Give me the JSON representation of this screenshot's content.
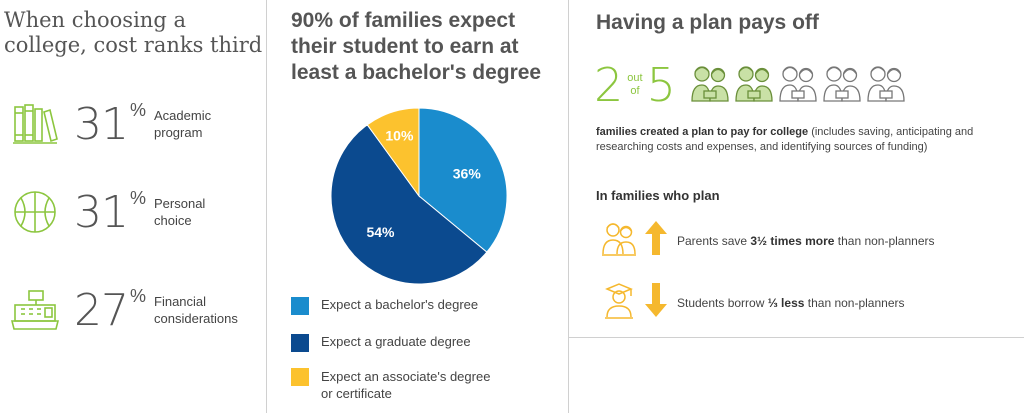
{
  "colors": {
    "green": "#8cc63f",
    "gold": "#f5b82e",
    "light_blue": "#1a8ccd",
    "dark_blue": "#0b4a8f",
    "yellow": "#fcc22e",
    "grey_text": "#555555"
  },
  "col1": {
    "title_line1": "When choosing a",
    "title_line2": "college, cost ranks third",
    "stats": [
      {
        "value": "31",
        "unit": "%",
        "label_line1": "Academic",
        "label_line2": "program",
        "icon": "books-icon"
      },
      {
        "value": "31",
        "unit": "%",
        "label_line1": "Personal",
        "label_line2": "choice",
        "icon": "basketball-icon"
      },
      {
        "value": "27",
        "unit": "%",
        "label_line1": "Financial",
        "label_line2": "considerations",
        "icon": "cash-register-icon"
      }
    ]
  },
  "col2": {
    "title_line1": "90% of families expect",
    "title_line2": "their student to earn at",
    "title_line3": "least a bachelor's degree"
  },
  "chart_data": {
    "type": "pie",
    "title": "90% of families expect their student to earn at least a bachelor's degree",
    "slices": [
      {
        "name": "Expect a bachelor's degree",
        "value": 36,
        "label": "36%",
        "color": "#1a8ccd"
      },
      {
        "name": "Expect a graduate degree",
        "value": 54,
        "label": "54%",
        "color": "#0b4a8f"
      },
      {
        "name": "Expect an associate's degree or certificate",
        "value": 10,
        "label": "10%",
        "color": "#fcc22e"
      }
    ],
    "legend": [
      {
        "line1": "Expect a bachelor's degree",
        "line2": "",
        "color": "#1a8ccd"
      },
      {
        "line1": "Expect a graduate degree",
        "line2": "",
        "color": "#0b4a8f"
      },
      {
        "line1": "Expect an associate's degree",
        "line2": "or certificate",
        "color": "#fcc22e"
      }
    ],
    "legend_position": "bottom"
  },
  "col3": {
    "title": "Having a plan pays off",
    "count": "2",
    "out_word1": "out",
    "out_word2": "of",
    "total": "5",
    "families_filled": 2,
    "families_total": 5,
    "desc_bold": "families created a plan to pay for college",
    "desc_rest": " (includes saving, anticipating and researching costs and expenses, and identifying sources of funding)",
    "sub_title": "In families who plan",
    "row1_pre": "Parents save ",
    "row1_bold": "3½ times more",
    "row1_post": " than non-planners",
    "row2_pre": "Students borrow ",
    "row2_bold": "⅓ less",
    "row2_post": " than non-planners"
  }
}
